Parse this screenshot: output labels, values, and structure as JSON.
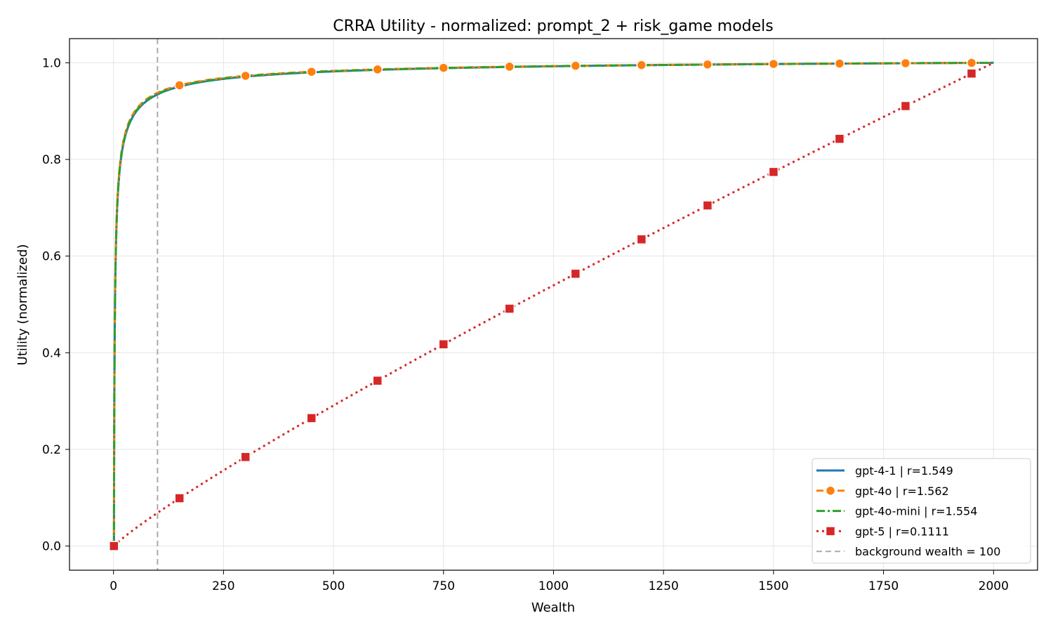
{
  "chart_data": {
    "type": "line",
    "title": "CRRA Utility - normalized: prompt_2 + risk_game models",
    "xlabel": "Wealth",
    "ylabel": "Utility (normalized)",
    "xlim": [
      -100,
      2100
    ],
    "ylim": [
      -0.05,
      1.05
    ],
    "xticks": [
      0,
      250,
      500,
      750,
      1000,
      1250,
      1500,
      1750,
      2000
    ],
    "yticks": [
      0.0,
      0.2,
      0.4,
      0.6,
      0.8,
      1.0
    ],
    "xtick_labels": [
      "0",
      "250",
      "500",
      "750",
      "1000",
      "1250",
      "1500",
      "1750",
      "2000"
    ],
    "ytick_labels": [
      "0.0",
      "0.2",
      "0.4",
      "0.6",
      "0.8",
      "1.0"
    ],
    "grid": true,
    "legend_position": "bottom-right",
    "domain": [
      1,
      2000
    ],
    "series": [
      {
        "name": "gpt-4-1 | r=1.549",
        "r": 1.549,
        "color": "#1f77b4",
        "style": "solid",
        "marker": "none"
      },
      {
        "name": "gpt-4o | r=1.562",
        "r": 1.562,
        "color": "#ff7f0e",
        "style": "dashed",
        "marker": "circle",
        "marker_x": [
          1,
          150,
          300,
          450,
          600,
          750,
          900,
          1050,
          1200,
          1350,
          1500,
          1650,
          1800,
          1950
        ]
      },
      {
        "name": "gpt-4o-mini | r=1.554",
        "r": 1.554,
        "color": "#2ca02c",
        "style": "dashdot",
        "marker": "none"
      },
      {
        "name": "gpt-5 | r=0.1111",
        "r": 0.1111,
        "color": "#d62728",
        "style": "dotted",
        "marker": "square",
        "marker_x": [
          1,
          150,
          300,
          450,
          600,
          750,
          900,
          1050,
          1200,
          1350,
          1500,
          1650,
          1800,
          1950
        ]
      }
    ],
    "reference_line": {
      "name": "background wealth = 100",
      "x": 100,
      "color": "#aaaaaa",
      "style": "dashed"
    }
  }
}
